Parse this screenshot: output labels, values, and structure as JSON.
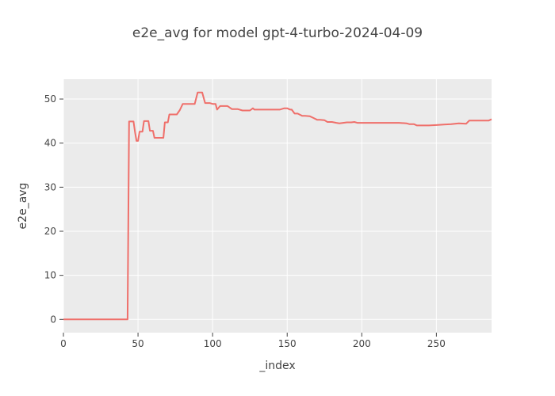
{
  "chart_data": {
    "type": "line",
    "title": "e2e_avg for model gpt-4-turbo-2024-04-09",
    "xlabel": "_index",
    "ylabel": "e2e_avg",
    "xlim": [
      0,
      287
    ],
    "ylim": [
      -3,
      54.5
    ],
    "xticks": [
      0,
      50,
      100,
      150,
      200,
      250
    ],
    "yticks": [
      0,
      10,
      20,
      30,
      40,
      50
    ],
    "grid": true,
    "legend": "none",
    "colors": {
      "line": "#EF6F6A",
      "plot_bg": "#EBEBEB",
      "grid": "#FFFFFF",
      "text": "#444444"
    },
    "series": [
      {
        "x": [
          0,
          43,
          44,
          45,
          47,
          48,
          49,
          50,
          51,
          53,
          54,
          56,
          57,
          58,
          60,
          61,
          63,
          65,
          67,
          68,
          70,
          71,
          73,
          74,
          76,
          78,
          80,
          82,
          84,
          86,
          88,
          90,
          91,
          93,
          95,
          96,
          98,
          100,
          102,
          103,
          105,
          107,
          110,
          113,
          115,
          117,
          120,
          122,
          125,
          127,
          128,
          130,
          133,
          135,
          140,
          145,
          148,
          150,
          152,
          153,
          155,
          157,
          160,
          162,
          165,
          167,
          170,
          172,
          175,
          177,
          180,
          183,
          185,
          190,
          193,
          195,
          197,
          200,
          210,
          215,
          220,
          225,
          230,
          232,
          235,
          237,
          240,
          245,
          250,
          255,
          260,
          265,
          270,
          272,
          275,
          280,
          285,
          287
        ],
        "y": [
          0,
          0,
          44.9,
          44.9,
          44.9,
          42.5,
          40.5,
          40.5,
          42.6,
          42.6,
          45.0,
          45.0,
          45.0,
          42.8,
          42.8,
          41.2,
          41.2,
          41.2,
          41.2,
          44.7,
          44.7,
          46.5,
          46.5,
          46.5,
          46.5,
          47.5,
          48.9,
          48.9,
          48.9,
          48.9,
          48.9,
          51.5,
          51.5,
          51.5,
          49.1,
          49.1,
          49.1,
          48.9,
          48.9,
          47.6,
          48.4,
          48.4,
          48.4,
          47.7,
          47.7,
          47.7,
          47.4,
          47.4,
          47.4,
          47.9,
          47.6,
          47.6,
          47.6,
          47.6,
          47.6,
          47.6,
          47.9,
          47.9,
          47.6,
          47.6,
          46.7,
          46.7,
          46.2,
          46.2,
          46.1,
          45.8,
          45.3,
          45.3,
          45.2,
          44.8,
          44.8,
          44.6,
          44.5,
          44.7,
          44.7,
          44.8,
          44.6,
          44.6,
          44.6,
          44.6,
          44.6,
          44.6,
          44.5,
          44.3,
          44.3,
          44.0,
          44.0,
          44.0,
          44.1,
          44.2,
          44.3,
          44.5,
          44.4,
          45.1,
          45.1,
          45.1,
          45.1,
          45.4
        ]
      }
    ]
  }
}
